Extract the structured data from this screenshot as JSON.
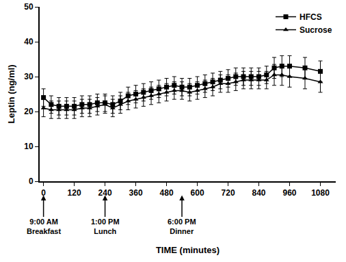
{
  "chart_data": {
    "type": "line",
    "x_label": "TIME (minutes)",
    "y_label": "Leptin (ng/ml)",
    "x": [
      0,
      30,
      60,
      90,
      120,
      150,
      180,
      210,
      240,
      270,
      300,
      330,
      360,
      390,
      420,
      450,
      480,
      510,
      540,
      570,
      600,
      630,
      660,
      690,
      720,
      750,
      780,
      810,
      840,
      870,
      900,
      930,
      960,
      1020,
      1080
    ],
    "series": [
      {
        "name": "HFCS",
        "color": "#000000",
        "marker": "square",
        "values": [
          24,
          22,
          21.5,
          21.5,
          21.5,
          22,
          22,
          22.5,
          22.5,
          22,
          23,
          24.5,
          25,
          25.5,
          26,
          26.5,
          27,
          27.5,
          27,
          27,
          27.5,
          28,
          28.5,
          29,
          29.5,
          30,
          30,
          30,
          30,
          30.5,
          32.5,
          33,
          33,
          32.5,
          31.5
        ],
        "errors": [
          2.5,
          2.5,
          2.5,
          2.5,
          2.5,
          2.5,
          2.5,
          2.5,
          2.5,
          2.5,
          2.5,
          2.5,
          2.5,
          2.5,
          2.5,
          2.5,
          2.5,
          2.5,
          2.5,
          2.5,
          2.5,
          2.5,
          2.5,
          2.5,
          2.5,
          2.5,
          2.5,
          2.5,
          2.5,
          2.5,
          3,
          3,
          3,
          3,
          3
        ]
      },
      {
        "name": "Sucrose",
        "color": "#000000",
        "marker": "triangle",
        "values": [
          21,
          20.5,
          20.5,
          20.5,
          20.5,
          21,
          21,
          21.5,
          22,
          21,
          22,
          23,
          23.5,
          24,
          24.5,
          25,
          25.5,
          26,
          26,
          25.5,
          26,
          26.5,
          27,
          28,
          28,
          28.5,
          29,
          29,
          29,
          29,
          30.5,
          30.5,
          30,
          29.5,
          28.5
        ],
        "errors": [
          2.5,
          2.5,
          2.5,
          2.5,
          2.5,
          2.5,
          2.5,
          2.5,
          2.5,
          2.5,
          2.5,
          2.5,
          2.5,
          2.5,
          2.5,
          2.5,
          2.5,
          2.5,
          2.5,
          2.5,
          2.5,
          2.5,
          2.5,
          2.5,
          2.5,
          2.5,
          2.5,
          2.5,
          2.5,
          2.5,
          3,
          3,
          3,
          3,
          3
        ]
      }
    ],
    "xlim": [
      -15,
      1140
    ],
    "xticks": [
      0,
      120,
      240,
      360,
      480,
      600,
      720,
      840,
      960,
      1080
    ],
    "ylim": [
      0,
      50
    ],
    "yticks": [
      0,
      10,
      20,
      30,
      40,
      50
    ],
    "grid": false,
    "legend": "top-right",
    "annotations": [
      {
        "x": 0,
        "lines": [
          "9:00 AM",
          "Breakfast"
        ]
      },
      {
        "x": 240,
        "lines": [
          "1:00 PM",
          "Lunch"
        ]
      },
      {
        "x": 540,
        "lines": [
          "6:00 PM",
          "Dinner"
        ]
      }
    ]
  }
}
